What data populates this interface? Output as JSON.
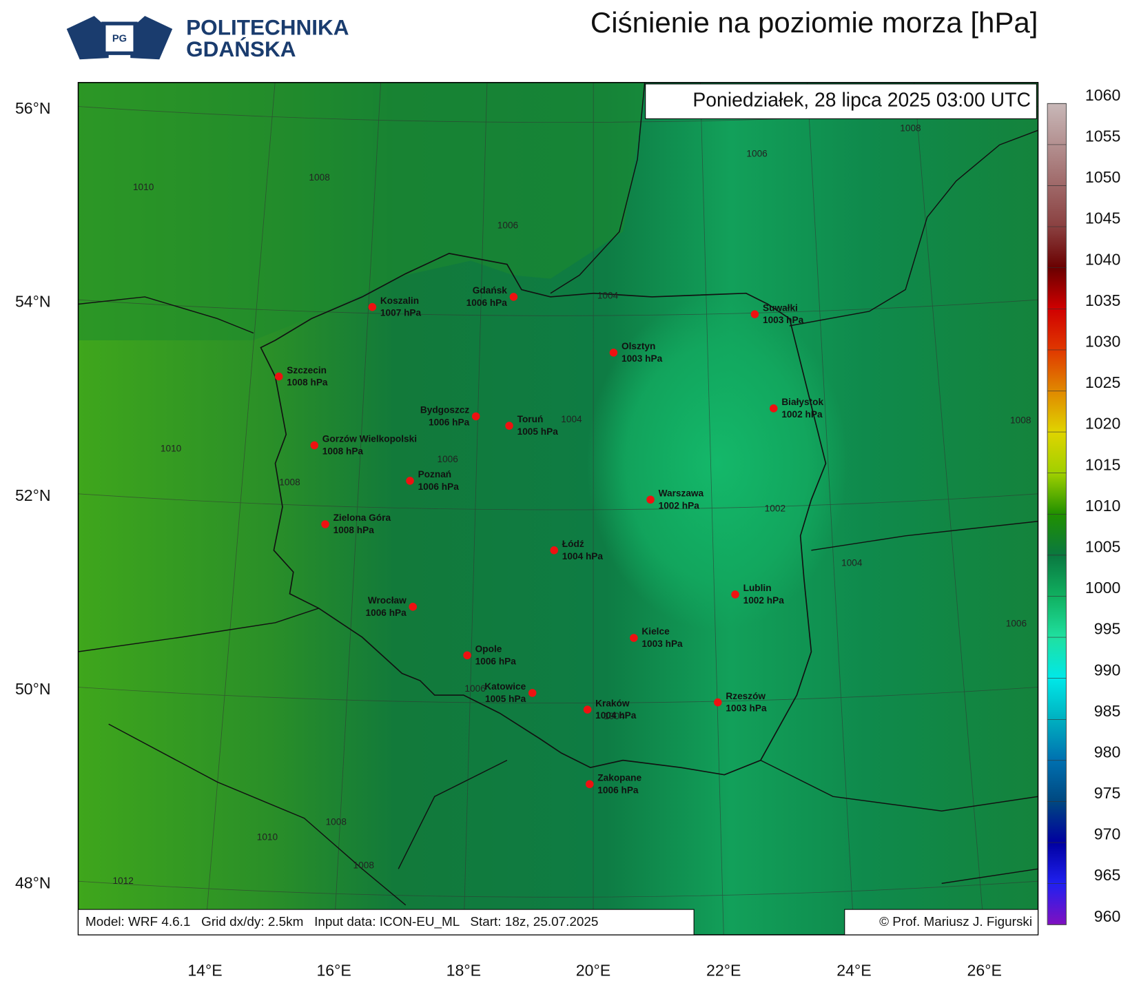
{
  "header": {
    "logo_line1": "POLITECHNIKA",
    "logo_line2": "GDAŃSKA",
    "logo_badge": "PG",
    "title": "Ciśnienie na poziomie morza [hPa]"
  },
  "map": {
    "timestamp": "Poniedziałek, 28 lipca 2025 03:00 UTC",
    "cities": [
      {
        "name": "Koszalin",
        "pressure": "1007 hPa"
      },
      {
        "name": "Gdańsk",
        "pressure": "1006 hPa"
      },
      {
        "name": "Suwałki",
        "pressure": "1003 hPa"
      },
      {
        "name": "Szczecin",
        "pressure": "1008 hPa"
      },
      {
        "name": "Olsztyn",
        "pressure": "1003 hPa"
      },
      {
        "name": "Bydgoszcz",
        "pressure": "1006 hPa"
      },
      {
        "name": "Toruń",
        "pressure": "1005 hPa"
      },
      {
        "name": "Białystok",
        "pressure": "1002 hPa"
      },
      {
        "name": "Gorzów Wielkopolski",
        "pressure": "1008 hPa"
      },
      {
        "name": "Poznań",
        "pressure": "1006 hPa"
      },
      {
        "name": "Warszawa",
        "pressure": "1002 hPa"
      },
      {
        "name": "Zielona Góra",
        "pressure": "1008 hPa"
      },
      {
        "name": "Łódź",
        "pressure": "1004 hPa"
      },
      {
        "name": "Lublin",
        "pressure": "1002 hPa"
      },
      {
        "name": "Wrocław",
        "pressure": "1006 hPa"
      },
      {
        "name": "Kielce",
        "pressure": "1003 hPa"
      },
      {
        "name": "Opole",
        "pressure": "1006 hPa"
      },
      {
        "name": "Katowice",
        "pressure": "1005 hPa"
      },
      {
        "name": "Kraków",
        "pressure": "1004 hPa"
      },
      {
        "name": "Rzeszów",
        "pressure": "1003 hPa"
      },
      {
        "name": "Zakopane",
        "pressure": "1006 hPa"
      }
    ],
    "contour_labels": [
      "1008",
      "1006",
      "1008",
      "1010",
      "1006",
      "1004",
      "1004",
      "1006",
      "1008",
      "1010",
      "1008",
      "1002",
      "1004",
      "1006",
      "1006",
      "1004",
      "1008",
      "1010",
      "1008",
      "1012"
    ],
    "lat_labels": [
      "56°N",
      "54°N",
      "52°N",
      "50°N",
      "48°N"
    ],
    "lon_labels": [
      "14°E",
      "16°E",
      "18°E",
      "20°E",
      "22°E",
      "24°E",
      "26°E"
    ],
    "colorbar_labels": [
      "1060",
      "1055",
      "1050",
      "1045",
      "1040",
      "1035",
      "1030",
      "1025",
      "1020",
      "1015",
      "1010",
      "1005",
      "1000",
      "995",
      "990",
      "985",
      "980",
      "975",
      "970",
      "965",
      "960"
    ],
    "footer_model": "Model: WRF 4.6.1   Grid dx/dy: 2.5km   Input data: ICON-EU_ML   Start: 18z, 25.07.2025",
    "footer_copyright": "© Prof. Mariusz J. Figurski"
  }
}
